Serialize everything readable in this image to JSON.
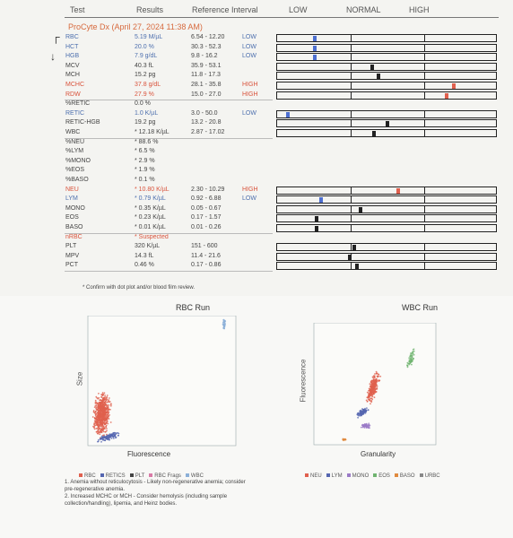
{
  "header": {
    "test": "Test",
    "results": "Results",
    "reference": "Reference Interval",
    "low": "LOW",
    "normal": "NORMAL",
    "high": "HIGH"
  },
  "instrument": "ProCyte Dx (April 27, 2024 11:38 AM)",
  "rows": [
    {
      "name": "RBC",
      "result": "5.19 M/µL",
      "ref": "6.54 - 12.20",
      "flag": "LOW",
      "color": "blue",
      "level": 0.17
    },
    {
      "name": "HCT",
      "result": "20.0 %",
      "ref": "30.3 - 52.3",
      "flag": "LOW",
      "color": "blue",
      "level": 0.17
    },
    {
      "name": "HGB",
      "result": "7.9 g/dL",
      "ref": "9.8 - 16.2",
      "flag": "LOW",
      "color": "blue",
      "level": 0.17
    },
    {
      "name": "MCV",
      "result": "40.3 fL",
      "ref": "35.9 - 53.1",
      "flag": "",
      "color": "",
      "level": 0.43
    },
    {
      "name": "MCH",
      "result": "15.2 pg",
      "ref": "11.8 - 17.3",
      "flag": "",
      "color": "",
      "level": 0.46
    },
    {
      "name": "MCHC",
      "result": "37.8 g/dL",
      "ref": "28.1 - 35.8",
      "flag": "HIGH",
      "color": "red",
      "level": 0.8
    },
    {
      "name": "RDW",
      "result": "27.9 %",
      "ref": "15.0 - 27.0",
      "flag": "HIGH",
      "color": "red",
      "level": 0.77
    },
    {
      "name": "%RETIC",
      "result": "0.0 %",
      "ref": "",
      "flag": "",
      "color": "",
      "level": null
    },
    {
      "name": "RETIC",
      "result": "1.0 K/µL",
      "ref": "3.0 - 50.0",
      "flag": "LOW",
      "color": "blue",
      "level": 0.05
    },
    {
      "name": "RETIC-HGB",
      "result": "19.2 pg",
      "ref": "13.2 - 20.8",
      "flag": "",
      "color": "",
      "level": 0.5
    },
    {
      "name": "WBC",
      "result": "* 12.18 K/µL",
      "ref": "2.87 - 17.02",
      "flag": "",
      "color": "",
      "level": 0.44
    },
    {
      "name": "%NEU",
      "result": "* 88.6 %",
      "ref": "",
      "flag": "",
      "color": "",
      "level": null
    },
    {
      "name": "%LYM",
      "result": "* 6.5 %",
      "ref": "",
      "flag": "",
      "color": "",
      "level": null
    },
    {
      "name": "%MONO",
      "result": "* 2.9 %",
      "ref": "",
      "flag": "",
      "color": "",
      "level": null
    },
    {
      "name": "%EOS",
      "result": "* 1.9 %",
      "ref": "",
      "flag": "",
      "color": "",
      "level": null
    },
    {
      "name": "%BASO",
      "result": "* 0.1 %",
      "ref": "",
      "flag": "",
      "color": "",
      "level": null
    },
    {
      "name": "NEU",
      "result": "* 10.80 K/µL",
      "ref": "2.30 - 10.29",
      "flag": "HIGH",
      "color": "red",
      "level": 0.55
    },
    {
      "name": "LYM",
      "result": "* 0.79 K/µL",
      "ref": "0.92 - 6.88",
      "flag": "LOW",
      "color": "blue",
      "level": 0.2
    },
    {
      "name": "MONO",
      "result": "* 0.35 K/µL",
      "ref": "0.05 - 0.67",
      "flag": "",
      "color": "",
      "level": 0.38
    },
    {
      "name": "EOS",
      "result": "* 0.23 K/µL",
      "ref": "0.17 - 1.57",
      "flag": "",
      "color": "",
      "level": 0.18
    },
    {
      "name": "BASO",
      "result": "* 0.01 K/µL",
      "ref": "0.01 - 0.26",
      "flag": "",
      "color": "",
      "level": 0.18
    },
    {
      "name": "nRBC",
      "result": "* Suspected",
      "ref": "",
      "flag": "",
      "color": "red",
      "level": null
    },
    {
      "name": "PLT",
      "result": "320 K/µL",
      "ref": "151 - 600",
      "flag": "",
      "color": "",
      "level": 0.35
    },
    {
      "name": "MPV",
      "result": "14.3 fL",
      "ref": "11.4 - 21.6",
      "flag": "",
      "color": "",
      "level": 0.33
    },
    {
      "name": "PCT",
      "result": "0.46 %",
      "ref": "0.17 - 0.86",
      "flag": "",
      "color": "",
      "level": 0.36
    }
  ],
  "confirm_note": "* Confirm with dot plot and/or blood film review.",
  "rbc_run": {
    "title": "RBC Run",
    "xlabel": "Fluorescence",
    "ylabel": "Size",
    "legend": [
      {
        "label": "RBC",
        "color": "#e0604e"
      },
      {
        "label": "RETICS",
        "color": "#5566b0"
      },
      {
        "label": "PLT",
        "color": "#444444"
      },
      {
        "label": "RBC Frags",
        "color": "#d97aa6"
      },
      {
        "label": "WBC",
        "color": "#8cb0d8"
      }
    ]
  },
  "wbc_run": {
    "title": "WBC Run",
    "xlabel": "Granularity",
    "ylabel": "Fluorescence",
    "legend": [
      {
        "label": "NEU",
        "color": "#e0604e"
      },
      {
        "label": "LYM",
        "color": "#5566b0"
      },
      {
        "label": "MONO",
        "color": "#9b7bc7"
      },
      {
        "label": "EOS",
        "color": "#6fb46f"
      },
      {
        "label": "BASO",
        "color": "#e08a3e"
      },
      {
        "label": "URBC",
        "color": "#888888"
      }
    ]
  },
  "notes": [
    "1. Anemia without reticulocytosis - Likely non-regenerative anemia; consider",
    "pre-regenerative anemia.",
    "2. Increased MCHC or MCH - Consider hemolysis (including sample",
    "collection/handling), lipemia, and Heinz bodies."
  ]
}
